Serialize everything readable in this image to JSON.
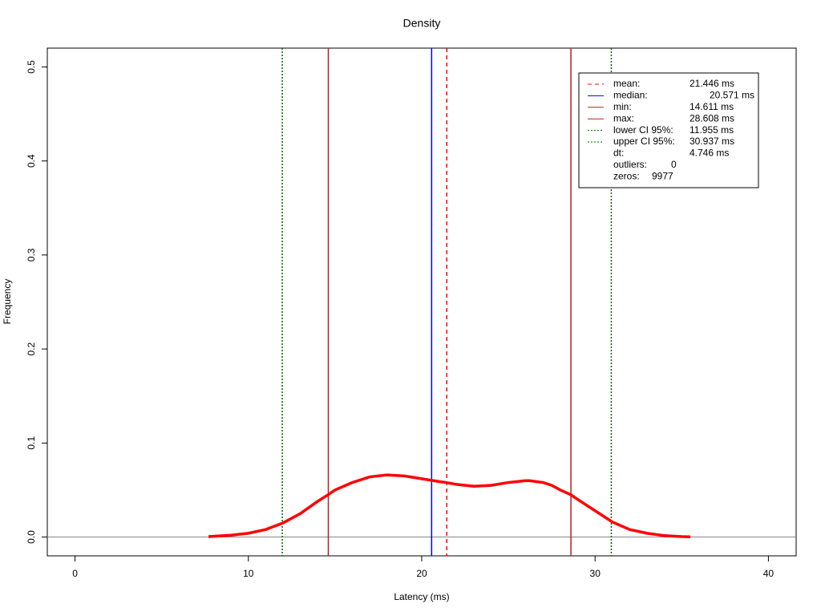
{
  "chart_data": {
    "type": "line",
    "title": "Density",
    "x_label": "Latency (ms)",
    "y_label": "Frequency",
    "x": [
      7.7,
      9,
      10,
      11,
      12,
      13,
      14,
      14.6,
      15,
      16,
      17,
      18,
      19,
      20,
      21,
      21.4,
      22,
      23,
      24,
      25,
      26,
      26.2,
      27,
      27.5,
      28,
      28.6,
      29,
      30,
      31,
      32,
      33,
      34,
      35,
      35.5
    ],
    "series": [
      {
        "name": "density",
        "color": "#ff0000",
        "values": [
          0.0005,
          0.002,
          0.004,
          0.008,
          0.015,
          0.025,
          0.038,
          0.045,
          0.05,
          0.058,
          0.064,
          0.066,
          0.065,
          0.062,
          0.059,
          0.058,
          0.056,
          0.054,
          0.055,
          0.058,
          0.06,
          0.06,
          0.058,
          0.055,
          0.05,
          0.045,
          0.04,
          0.028,
          0.016,
          0.008,
          0.004,
          0.0015,
          0.0005,
          0.0003
        ]
      }
    ],
    "xlim": [
      -1.6,
      41.6
    ],
    "ylim": [
      -0.02,
      0.52
    ],
    "xticks": [
      0,
      10,
      20,
      30,
      40
    ],
    "yticks": [
      0.0,
      0.1,
      0.2,
      0.3,
      0.4,
      0.5
    ],
    "yticks_labels_note_free": null,
    "vlines": {
      "names": [
        "mean:",
        "median:",
        "min:",
        "max:",
        "lower CI 95%:",
        "upper CI 95%:"
      ],
      "values": [
        21.446,
        20.571,
        14.611,
        28.608,
        11.955,
        30.937
      ],
      "value_labels": [
        "21.446 ms",
        "20.571 ms",
        "14.611 ms",
        "28.608 ms",
        "11.955 ms",
        "30.937 ms"
      ],
      "colors": [
        "#ff0000",
        "#0000ff",
        "#b22222",
        "#b22222",
        "#006400",
        "#006400"
      ],
      "dashes": [
        "5,4",
        "none",
        "none",
        "none",
        "2,2",
        "2,2"
      ]
    },
    "legend_extra": [
      [
        "dt:",
        "4.746 ms"
      ],
      [
        "outliers:",
        "0"
      ],
      [
        "zeros:",
        "9977"
      ]
    ]
  }
}
